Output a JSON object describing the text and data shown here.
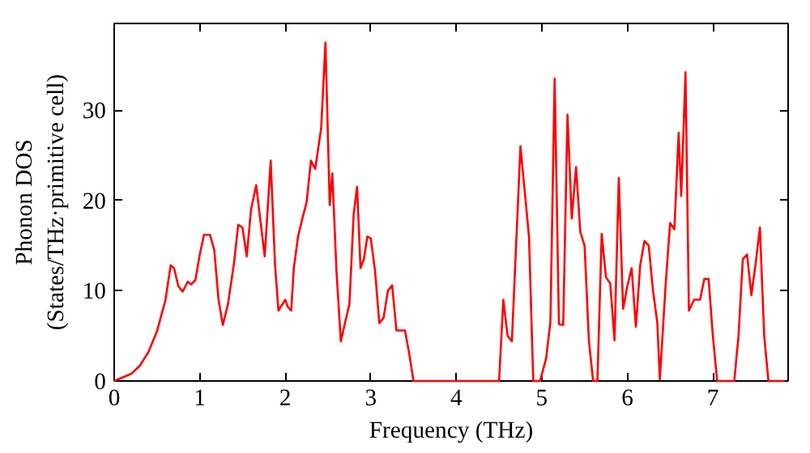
{
  "chart_data": {
    "type": "line",
    "xlabel": "Frequency (THz)",
    "ylabel": "Phonon DOS\n(States/THz·primitive cell)",
    "xlim": [
      0,
      7.88
    ],
    "ylim": [
      0,
      39.6
    ],
    "xticks": [
      0,
      1,
      2,
      3,
      4,
      5,
      6,
      7
    ],
    "yticks": [
      0,
      10,
      20,
      30
    ],
    "grid": false,
    "line_style": "solid",
    "series": [
      {
        "color": "#ff0000",
        "x": [
          0,
          0.2,
          0.3,
          0.4,
          0.5,
          0.6,
          0.66,
          0.7,
          0.75,
          0.8,
          0.86,
          0.9,
          0.95,
          1.0,
          1.05,
          1.12,
          1.17,
          1.22,
          1.27,
          1.33,
          1.4,
          1.45,
          1.5,
          1.55,
          1.6,
          1.66,
          1.7,
          1.76,
          1.83,
          1.88,
          1.92,
          2.0,
          2.03,
          2.07,
          2.1,
          2.15,
          2.2,
          2.25,
          2.3,
          2.35,
          2.42,
          2.47,
          2.52,
          2.55,
          2.6,
          2.65,
          2.7,
          2.75,
          2.8,
          2.84,
          2.88,
          2.92,
          2.96,
          3.0,
          3.05,
          3.1,
          3.15,
          3.2,
          3.25,
          3.3,
          3.4,
          3.45,
          3.5,
          4.5,
          4.55,
          4.6,
          4.65,
          4.75,
          4.85,
          4.9,
          4.98,
          5.05,
          5.1,
          5.15,
          5.2,
          5.25,
          5.3,
          5.35,
          5.4,
          5.45,
          5.5,
          5.55,
          5.6,
          5.65,
          5.7,
          5.75,
          5.8,
          5.85,
          5.9,
          5.95,
          6.0,
          6.05,
          6.1,
          6.15,
          6.2,
          6.25,
          6.3,
          6.35,
          6.38,
          6.45,
          6.5,
          6.55,
          6.6,
          6.63,
          6.68,
          6.72,
          6.78,
          6.85,
          6.9,
          6.95,
          7.0,
          7.05,
          7.25,
          7.3,
          7.35,
          7.4,
          7.45,
          7.5,
          7.55,
          7.6,
          7.65,
          7.84
        ],
        "values": [
          0,
          0.8,
          1.7,
          3.2,
          5.5,
          9,
          12.8,
          12.5,
          10.5,
          9.9,
          11,
          10.7,
          11.2,
          14,
          16.2,
          16.2,
          14.5,
          9,
          6.2,
          8.5,
          13,
          17.3,
          17,
          13.8,
          19,
          21.7,
          18.5,
          13.8,
          24.4,
          13,
          7.8,
          9,
          8.2,
          7.8,
          12.5,
          16,
          18,
          19.8,
          24.4,
          23.5,
          28,
          37.5,
          19.5,
          23,
          12,
          4.4,
          6.5,
          8.5,
          18.5,
          21.5,
          12.5,
          13.5,
          16,
          15.8,
          12.2,
          6.4,
          7,
          10,
          10.6,
          5.6,
          5.6,
          3,
          0,
          0,
          9,
          5,
          4.4,
          26,
          16,
          0,
          0,
          2.5,
          6.5,
          33.5,
          6.3,
          6.2,
          29.5,
          18,
          23.7,
          16.5,
          15,
          4.5,
          0,
          0,
          16.3,
          11.5,
          10.8,
          4.5,
          22.5,
          8,
          10.5,
          12.5,
          6,
          12.8,
          15.5,
          15,
          10,
          6.5,
          0.2,
          11,
          17.5,
          16.8,
          27.5,
          20.5,
          34.2,
          7.8,
          9,
          9,
          11.3,
          11.3,
          5,
          0,
          0,
          5,
          13.5,
          14,
          9.5,
          13,
          17,
          5,
          0,
          0
        ]
      }
    ]
  }
}
